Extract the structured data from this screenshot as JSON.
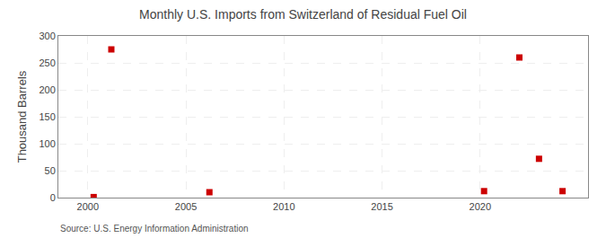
{
  "chart_data": {
    "type": "scatter",
    "title": "Monthly U.S. Imports from Switzerland of Residual Fuel Oil",
    "y_label": "Thousand Barrels",
    "annotations": [
      "Source: U.S. Energy Information Administration"
    ],
    "x": [
      2000.3,
      2001.2,
      2006.2,
      2020.2,
      2022.0,
      2023.0,
      2024.2
    ],
    "values": [
      1,
      275,
      10,
      12,
      260,
      72,
      12
    ],
    "color": "#cc0000",
    "marker": "square",
    "xlim": [
      1998.5,
      2025.5
    ],
    "ylim": [
      0,
      300
    ],
    "xticks": [
      2000,
      2005,
      2010,
      2015,
      2020
    ],
    "yticks": [
      0,
      50,
      100,
      150,
      200,
      250,
      300
    ],
    "grid": true
  }
}
